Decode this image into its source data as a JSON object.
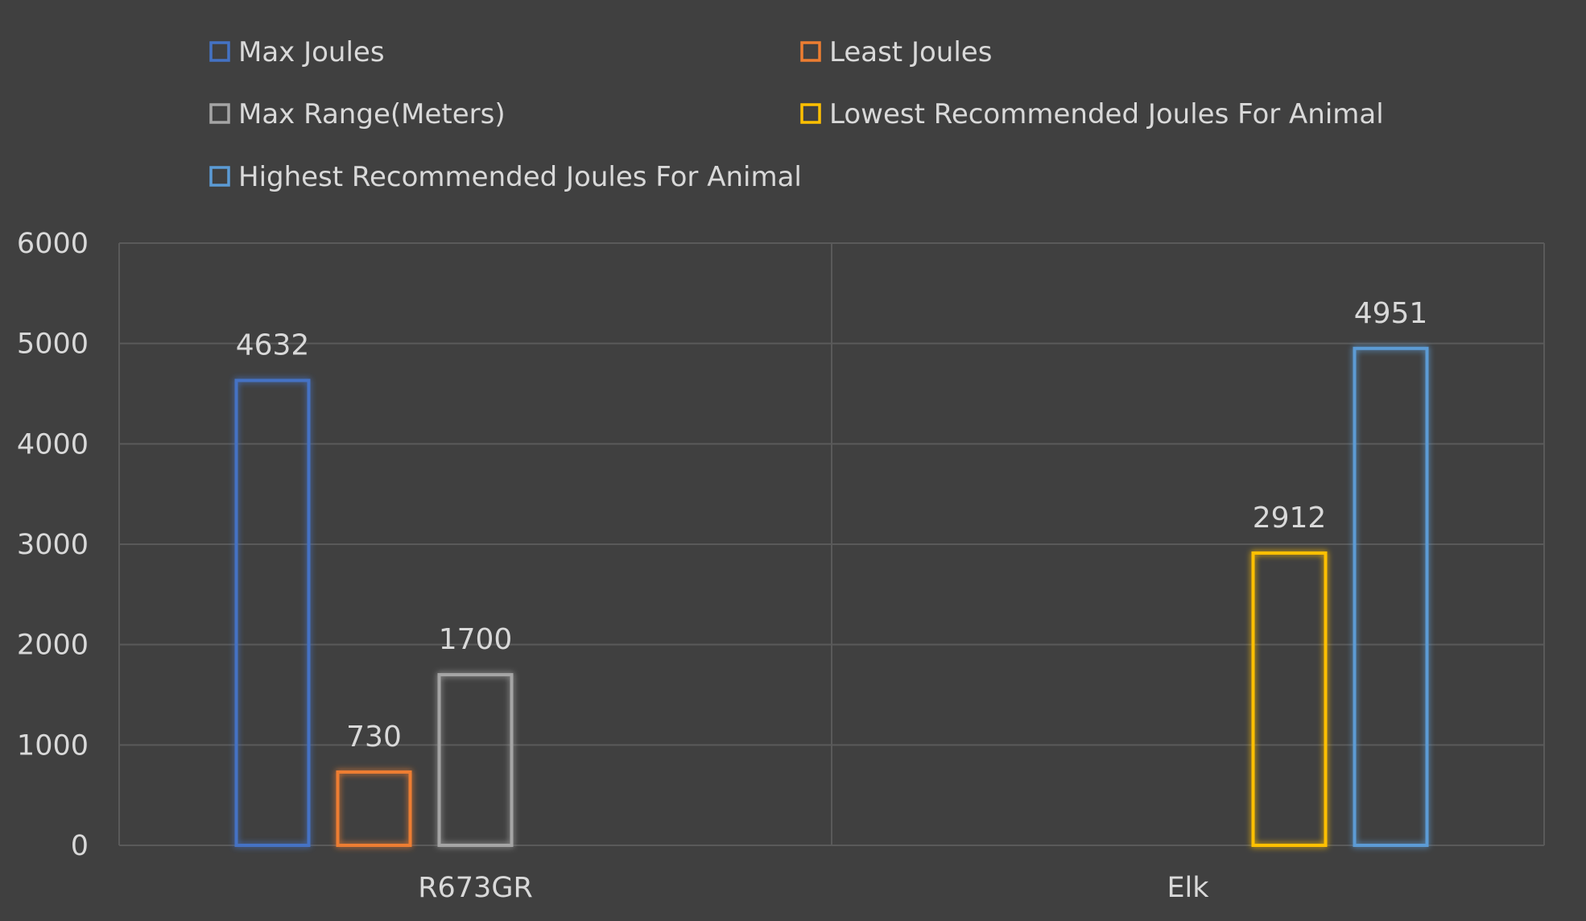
{
  "chart_data": {
    "type": "bar",
    "categories": [
      "R673GR",
      "Elk"
    ],
    "series": [
      {
        "name": "Max Joules",
        "values": [
          4632,
          null
        ],
        "color": "#4472c4"
      },
      {
        "name": "Least Joules",
        "values": [
          730,
          null
        ],
        "color": "#ed7d31"
      },
      {
        "name": "Max Range(Meters)",
        "values": [
          1700,
          null
        ],
        "color": "#a5a5a5"
      },
      {
        "name": "Lowest Recommended Joules For Animal",
        "values": [
          null,
          2912
        ],
        "color": "#ffc000"
      },
      {
        "name": "Highest Recommended Joules For Animal",
        "values": [
          null,
          4951
        ],
        "color": "#5b9bd5"
      }
    ],
    "ylim": [
      0,
      6000
    ],
    "yticks": [
      0,
      1000,
      2000,
      3000,
      4000,
      5000,
      6000
    ],
    "grid": true,
    "legend_position": "top",
    "background": "#404040",
    "data_labels": true
  }
}
